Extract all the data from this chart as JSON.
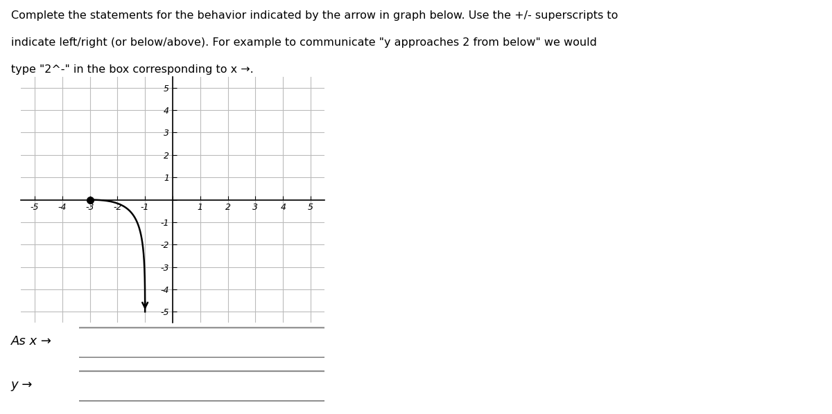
{
  "xlim": [
    -5.5,
    5.5
  ],
  "ylim": [
    -5.5,
    5.5
  ],
  "xticks": [
    -5,
    -4,
    -3,
    -2,
    -1,
    0,
    1,
    2,
    3,
    4,
    5
  ],
  "yticks": [
    -5,
    -4,
    -3,
    -2,
    -1,
    0,
    1,
    2,
    3,
    4,
    5
  ],
  "xtick_labels": [
    "-5",
    "-4",
    "-3",
    "-2",
    "-1",
    "",
    "1",
    "2",
    "3",
    "4",
    "5"
  ],
  "ytick_labels": [
    "-5",
    "-4",
    "-3",
    "-2",
    "-1",
    "",
    "1",
    "2",
    "3",
    "4",
    "5"
  ],
  "dot_x": -3,
  "dot_y": 0,
  "curve_color": "black",
  "dot_color": "black",
  "grid_color": "#bbbbbb",
  "background_color": "white",
  "title_line1": "Complete the statements for the behavior indicated by the arrow in graph below. Use the +/- superscripts to",
  "title_line2": "indicate left/right (or below/above). For example to communicate \"y approaches 2 from below\" we would",
  "title_line3": "type \"2^-\" in the box corresponding to x →.",
  "label_asx": "As x →",
  "label_y": "y →"
}
